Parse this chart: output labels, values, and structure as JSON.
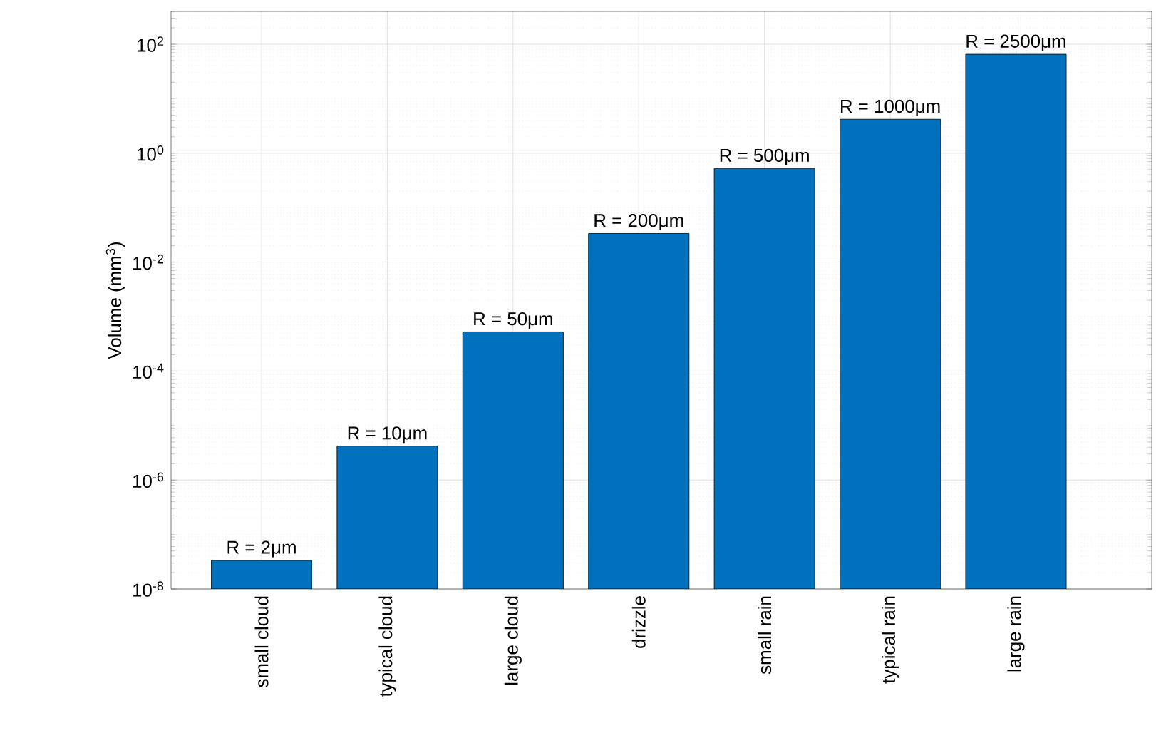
{
  "chart_data": {
    "type": "bar",
    "ylabel": "Volume (mm$^{3}$)",
    "categories": [
      "small cloud",
      "typical cloud",
      "large cloud",
      "drizzle",
      "small rain",
      "typical rain",
      "large rain"
    ],
    "values": [
      3.35e-08,
      4.19e-06,
      0.000524,
      0.0335,
      0.524,
      4.19,
      65.4
    ],
    "annotations": [
      {
        "text": "R = 2μm",
        "x": "small cloud",
        "y": 3.35e-08
      },
      {
        "text": "R = 10μm",
        "x": "typical cloud",
        "y": 4.19e-06
      },
      {
        "text": "R = 50μm",
        "x": "large cloud",
        "y": 0.000524
      },
      {
        "text": "R = 200μm",
        "x": "drizzle",
        "y": 0.0335
      },
      {
        "text": "R = 500μm",
        "x": "small rain",
        "y": 0.524
      },
      {
        "text": "R = 1000μm",
        "x": "typical rain",
        "y": 4.19
      },
      {
        "text": "R = 2500μm",
        "x": "large rain",
        "y": 65.4
      }
    ],
    "color": "#0072bd",
    "log": "y",
    "grid": true,
    "ylim": [
      1e-08,
      400
    ],
    "yticks": [
      {
        "value": 1e-08,
        "label": "10$^{-8}$"
      },
      {
        "value": 1e-06,
        "label": "10$^{-6}$"
      },
      {
        "value": 0.0001,
        "label": "10$^{-4}$"
      },
      {
        "value": 0.01,
        "label": "10$^{-2}$"
      },
      {
        "value": 1,
        "label": "10$^{0}$"
      },
      {
        "value": 100,
        "label": "10$^{2}$"
      }
    ]
  }
}
